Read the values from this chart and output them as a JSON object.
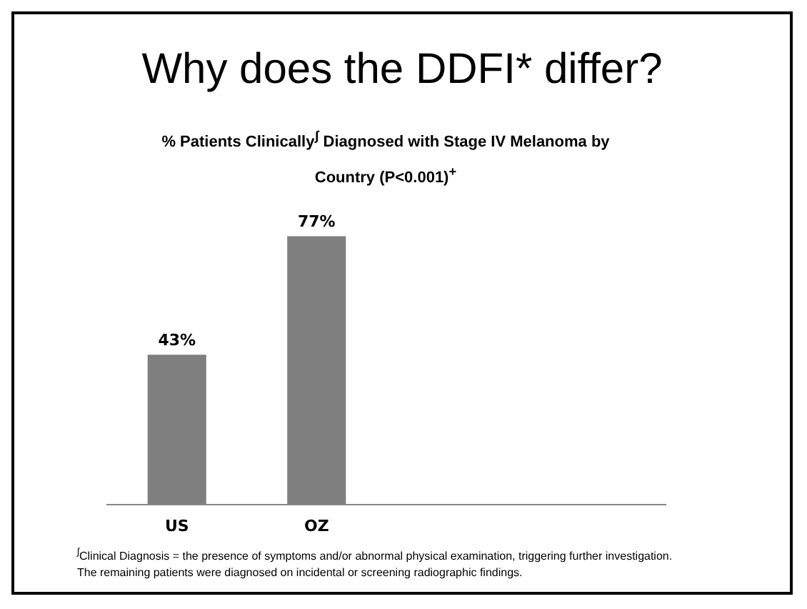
{
  "chart_data": {
    "type": "bar",
    "title": "Why does the DDFI* differ?",
    "subtitle": "% Patients Clinically$^{ʃ}$ Diagnosed with Stage IV Melanoma by Country (P<0.001)$^{+}$",
    "categories": [
      "US",
      "OZ",
      null,
      null
    ],
    "values": [
      43,
      77,
      null,
      null
    ],
    "value_labels": [
      "43%",
      "77%",
      null,
      null
    ],
    "color": "#7f7f7f",
    "grid": false,
    "legend": false,
    "annotations": [
      "$^{ʃ}$Clinical Diagnosis = the presence of symptoms and/or abnormal physical examination, triggering further investigation.",
      "The remaining patients were diagnosed on incidental or screening radiographic findings."
    ]
  }
}
